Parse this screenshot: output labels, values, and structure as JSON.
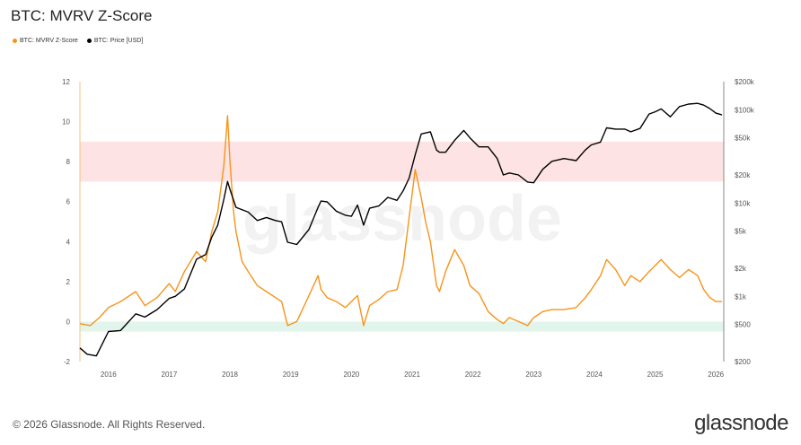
{
  "page": {
    "title": "BTC: MVRV Z-Score",
    "footer": "© 2026 Glassnode. All Rights Reserved.",
    "brand": "glassnode",
    "watermark": "glassnode"
  },
  "chart_data": {
    "type": "line",
    "title": "BTC: MVRV Z-Score",
    "xlabel": "",
    "ylabel": "",
    "x_range": [
      2015.53,
      2026.13
    ],
    "x_ticks": [
      "2016",
      "2017",
      "2018",
      "2019",
      "2020",
      "2021",
      "2022",
      "2023",
      "2024",
      "2025",
      "2026"
    ],
    "x_tick_values": [
      2016,
      2017,
      2018,
      2019,
      2020,
      2021,
      2022,
      2023,
      2024,
      2025,
      2026
    ],
    "ylim_left": [
      -2,
      12
    ],
    "y_ticks_left": [
      "-2",
      "0",
      "2",
      "4",
      "6",
      "8",
      "10",
      "12"
    ],
    "y_tick_values_left": [
      -2,
      0,
      2,
      4,
      6,
      8,
      10,
      12
    ],
    "ylim_right": [
      200,
      200000
    ],
    "right_scale": "log",
    "y_ticks_right": [
      "$200",
      "$500",
      "$1k",
      "$2k",
      "$5k",
      "$10k",
      "$20k",
      "$50k",
      "$100k",
      "$200k"
    ],
    "y_tick_values_right": [
      200,
      500,
      1000,
      2000,
      5000,
      10000,
      20000,
      50000,
      100000,
      200000
    ],
    "grid": false,
    "legend_position": "top-left",
    "bands": [
      {
        "from": 7,
        "to": 9,
        "color": "#fde3e3"
      },
      {
        "from": -0.5,
        "to": 0,
        "color": "#e2f5ec"
      }
    ],
    "series": [
      {
        "name": "BTC: MVRV Z-Score",
        "axis": "left",
        "color": "#f7931a",
        "x": [
          2015.53,
          2015.7,
          2015.85,
          2016.0,
          2016.2,
          2016.45,
          2016.6,
          2016.8,
          2017.0,
          2017.1,
          2017.25,
          2017.45,
          2017.6,
          2017.7,
          2017.8,
          2017.9,
          2017.96,
          2018.0,
          2018.06,
          2018.1,
          2018.2,
          2018.3,
          2018.45,
          2018.6,
          2018.75,
          2018.85,
          2018.95,
          2019.1,
          2019.3,
          2019.45,
          2019.5,
          2019.6,
          2019.75,
          2019.9,
          2020.0,
          2020.1,
          2020.2,
          2020.3,
          2020.45,
          2020.6,
          2020.75,
          2020.85,
          2020.95,
          2021.05,
          2021.15,
          2021.22,
          2021.3,
          2021.4,
          2021.45,
          2021.55,
          2021.7,
          2021.85,
          2021.95,
          2022.1,
          2022.25,
          2022.4,
          2022.5,
          2022.6,
          2022.75,
          2022.9,
          2023.0,
          2023.15,
          2023.3,
          2023.5,
          2023.7,
          2023.85,
          2023.95,
          2024.1,
          2024.2,
          2024.35,
          2024.5,
          2024.6,
          2024.75,
          2024.9,
          2025.0,
          2025.1,
          2025.25,
          2025.4,
          2025.55,
          2025.7,
          2025.8,
          2025.9,
          2026.0,
          2026.1
        ],
        "values": [
          -0.1,
          -0.2,
          0.2,
          0.7,
          1.0,
          1.5,
          0.8,
          1.2,
          1.9,
          1.5,
          2.5,
          3.5,
          3.0,
          4.5,
          5.5,
          7.8,
          10.3,
          8.0,
          5.5,
          4.5,
          3.0,
          2.5,
          1.8,
          1.5,
          1.2,
          1.0,
          -0.2,
          0.0,
          1.3,
          2.3,
          1.6,
          1.2,
          1.0,
          0.7,
          1.0,
          1.3,
          -0.2,
          0.8,
          1.1,
          1.5,
          1.6,
          2.8,
          5.2,
          7.6,
          6.2,
          5.0,
          4.0,
          1.8,
          1.5,
          2.5,
          3.6,
          2.8,
          1.8,
          1.4,
          0.5,
          0.1,
          -0.1,
          0.2,
          0.0,
          -0.2,
          0.2,
          0.5,
          0.6,
          0.6,
          0.7,
          1.2,
          1.6,
          2.3,
          3.1,
          2.6,
          1.8,
          2.3,
          2.0,
          2.5,
          2.8,
          3.1,
          2.6,
          2.2,
          2.6,
          2.3,
          1.6,
          1.2,
          1.0,
          1.0
        ]
      },
      {
        "name": "BTC: Price [USD]",
        "axis": "right",
        "color": "#000000",
        "x": [
          2015.53,
          2015.65,
          2015.8,
          2016.0,
          2016.2,
          2016.45,
          2016.6,
          2016.8,
          2017.0,
          2017.1,
          2017.25,
          2017.45,
          2017.6,
          2017.7,
          2017.8,
          2017.9,
          2017.96,
          2018.0,
          2018.1,
          2018.3,
          2018.45,
          2018.6,
          2018.75,
          2018.85,
          2018.95,
          2019.1,
          2019.3,
          2019.45,
          2019.5,
          2019.6,
          2019.75,
          2019.9,
          2020.0,
          2020.1,
          2020.2,
          2020.3,
          2020.45,
          2020.6,
          2020.75,
          2020.85,
          2020.95,
          2021.05,
          2021.15,
          2021.3,
          2021.4,
          2021.45,
          2021.55,
          2021.7,
          2021.85,
          2021.95,
          2022.1,
          2022.25,
          2022.4,
          2022.5,
          2022.6,
          2022.75,
          2022.9,
          2023.0,
          2023.15,
          2023.3,
          2023.5,
          2023.7,
          2023.85,
          2023.95,
          2024.1,
          2024.2,
          2024.35,
          2024.5,
          2024.6,
          2024.75,
          2024.9,
          2025.0,
          2025.1,
          2025.25,
          2025.4,
          2025.55,
          2025.7,
          2025.8,
          2025.9,
          2026.0,
          2026.1
        ],
        "values": [
          280,
          240,
          230,
          420,
          430,
          650,
          600,
          720,
          950,
          1000,
          1200,
          2500,
          2800,
          4300,
          5800,
          11000,
          17000,
          14000,
          9000,
          8000,
          6500,
          7000,
          6500,
          6300,
          3800,
          3600,
          5200,
          9000,
          10500,
          10300,
          8200,
          7400,
          7200,
          9500,
          5800,
          8800,
          9300,
          11500,
          10700,
          13500,
          18500,
          33000,
          55000,
          58000,
          37000,
          35000,
          35000,
          47000,
          60000,
          50000,
          40000,
          40000,
          30000,
          20000,
          21000,
          20000,
          16800,
          16500,
          23000,
          28000,
          30000,
          28500,
          37000,
          42000,
          45000,
          64000,
          62000,
          62000,
          58000,
          63000,
          90000,
          95000,
          102000,
          84000,
          108000,
          115000,
          117000,
          112000,
          103000,
          92000,
          88000
        ]
      }
    ]
  }
}
